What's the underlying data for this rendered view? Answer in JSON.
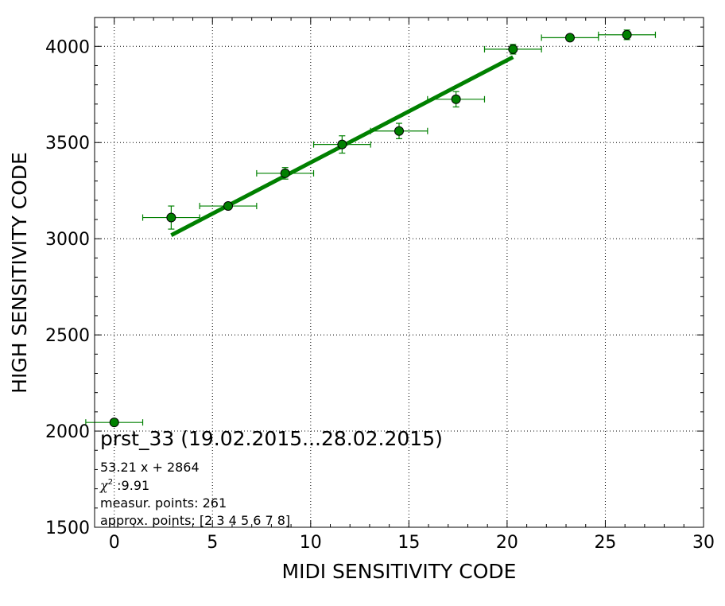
{
  "chart_data": {
    "type": "scatter",
    "title": "prst_33 (19.02.2015...28.02.2015)",
    "xlabel": "MIDI SENSITIVITY CODE",
    "ylabel": "HIGH SENSITIVITY CODE",
    "xlim": [
      -1,
      30
    ],
    "ylim": [
      1500,
      4150
    ],
    "x_ticks": [
      0,
      5,
      10,
      15,
      20,
      25,
      30
    ],
    "y_ticks": [
      1500,
      2000,
      2500,
      3000,
      3500,
      4000
    ],
    "grid": true,
    "color": "#008000",
    "points": [
      {
        "x": 0.0,
        "y": 2045,
        "xerr": 1.45,
        "yerr": 12
      },
      {
        "x": 2.9,
        "y": 3110,
        "xerr": 1.45,
        "yerr": 60
      },
      {
        "x": 5.8,
        "y": 3170,
        "xerr": 1.45,
        "yerr": 15
      },
      {
        "x": 8.7,
        "y": 3340,
        "xerr": 1.45,
        "yerr": 30
      },
      {
        "x": 11.6,
        "y": 3490,
        "xerr": 1.45,
        "yerr": 45
      },
      {
        "x": 14.5,
        "y": 3560,
        "xerr": 1.45,
        "yerr": 40
      },
      {
        "x": 17.4,
        "y": 3725,
        "xerr": 1.45,
        "yerr": 40
      },
      {
        "x": 20.3,
        "y": 3985,
        "xerr": 1.45,
        "yerr": 25
      },
      {
        "x": 23.2,
        "y": 4045,
        "xerr": 1.45,
        "yerr": 10
      },
      {
        "x": 26.1,
        "y": 4060,
        "xerr": 1.45,
        "yerr": 25
      }
    ],
    "fit": {
      "slope": 53.21,
      "intercept": 2864,
      "x_range": [
        2.9,
        20.3
      ]
    },
    "annotations": {
      "fit_equation": "53.21 x + 2864",
      "chi2_symbol": "χ",
      "chi2_exponent": "2",
      "chi2_value": " :9.91",
      "measur_points": "measur. points: 261",
      "approx_points": "approx. points: [2 3 4 5 6 7 8]"
    }
  }
}
